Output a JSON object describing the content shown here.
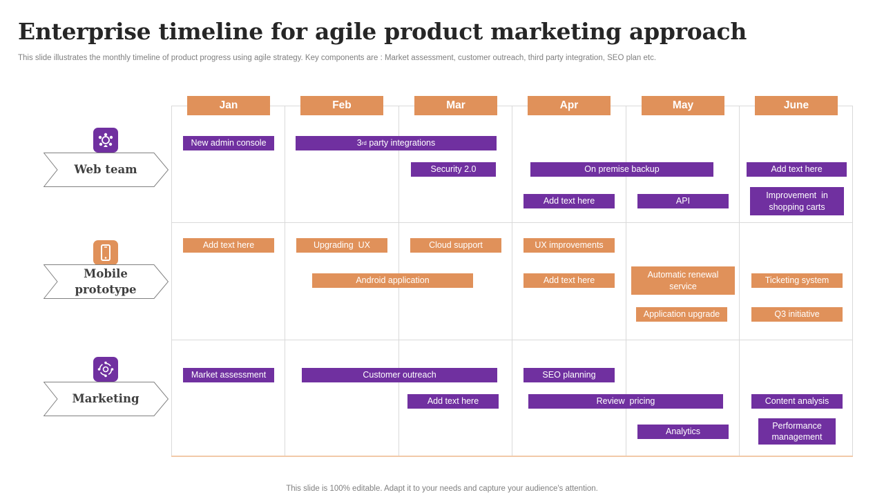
{
  "header": {
    "title": "Enterprise timeline for agile product marketing approach",
    "subtitle": "This slide illustrates the monthly timeline of product progress using agile strategy. Key components are : Market assessment, customer outreach, third party integration, SEO plan etc."
  },
  "months": [
    "Jan",
    "Feb",
    "Mar",
    "Apr",
    "May",
    "June"
  ],
  "colors": {
    "purple": "#7030a0",
    "orange": "#e0915a",
    "grid": "#d9d9d9"
  },
  "lanes": [
    {
      "label": "Web team",
      "icon": "team-network-icon",
      "tasks": {
        "new_admin_console": "New admin console",
        "third_party_pre": "3",
        "third_party_sup": "rd",
        "third_party_post": " party integrations",
        "security": "Security 2.0",
        "on_premise_backup": "On premise backup",
        "add_text_june": "Add text here",
        "add_text_apr": "Add text here",
        "api": "API",
        "shopping_carts": "Improvement  in shopping carts"
      }
    },
    {
      "label": "Mobile prototype",
      "icon": "smartphone-icon",
      "tasks": {
        "add_text_jan": "Add text here",
        "upgrading_ux": "Upgrading  UX",
        "cloud_support": "Cloud support",
        "ux_improvements": "UX improvements",
        "android_application": "Android application",
        "add_text_apr": "Add text here",
        "automatic_renewal": "Automatic renewal service",
        "ticketing_system": "Ticketing system",
        "application_upgrade": "Application upgrade",
        "q3_initiative": "Q3 initiative"
      }
    },
    {
      "label": "Marketing",
      "icon": "marketing-cycle-icon",
      "tasks": {
        "market_assessment": "Market assessment",
        "customer_outreach": "Customer outreach",
        "seo_planning": "SEO planning",
        "add_text_mar": "Add text here",
        "review_pricing": "Review  pricing",
        "content_analysis": "Content analysis",
        "analytics": "Analytics",
        "performance_management": "Performance management"
      }
    }
  ],
  "footer": "This slide is 100% editable. Adapt it to your needs and capture your audience's attention."
}
